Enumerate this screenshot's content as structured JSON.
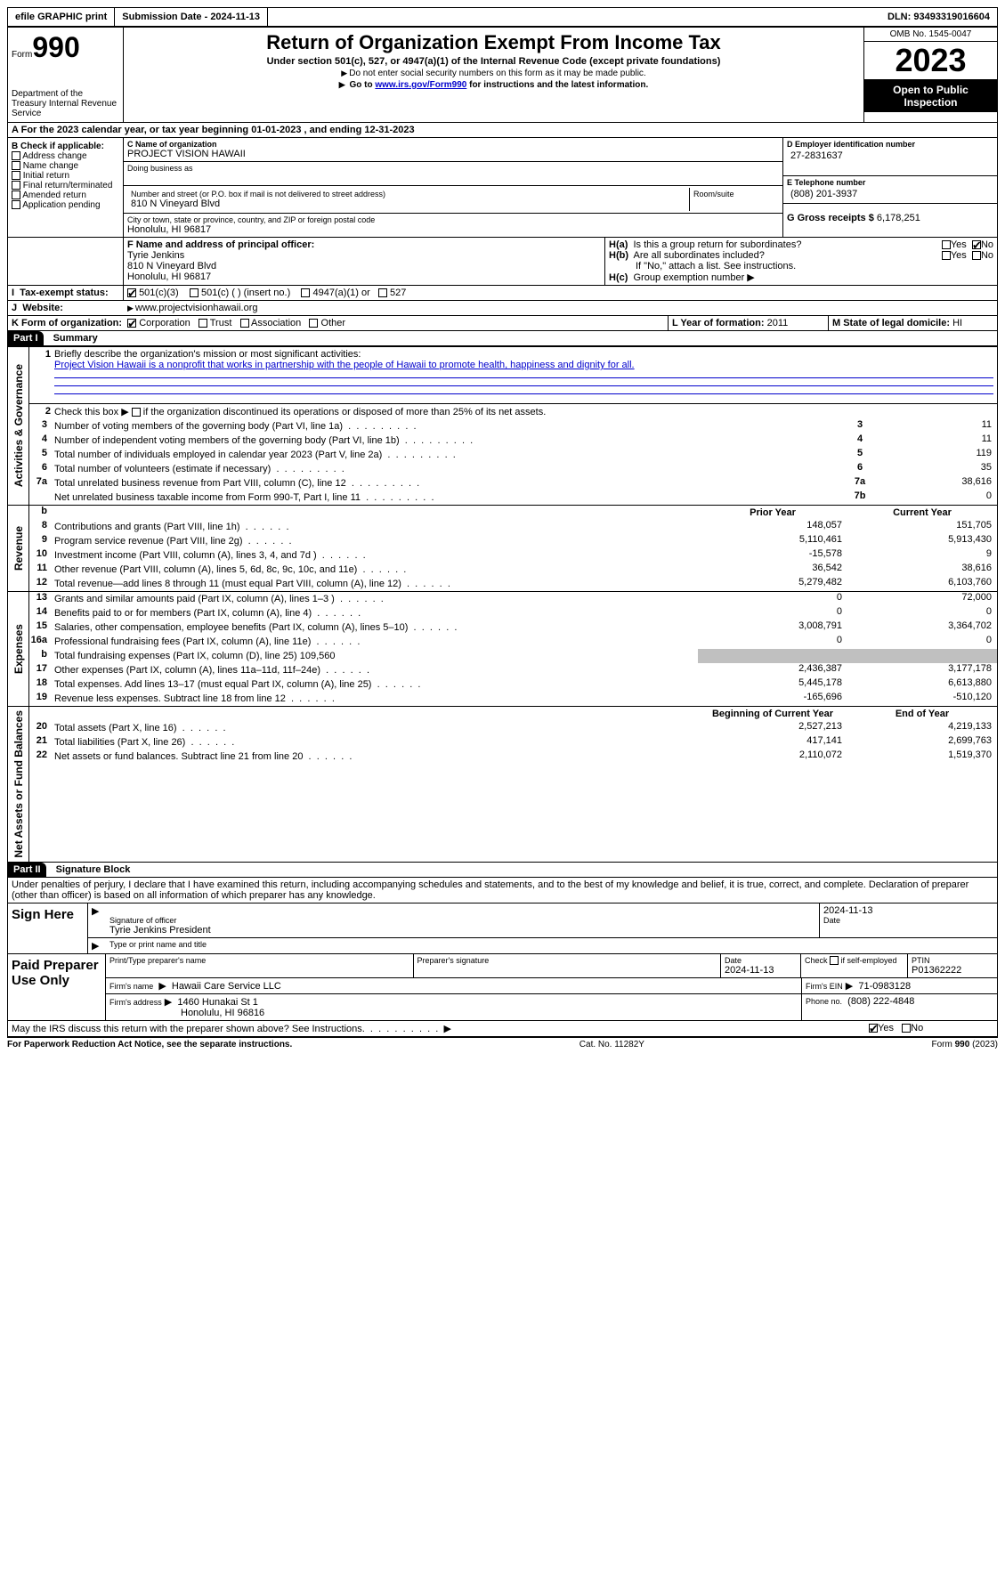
{
  "topbar": {
    "efile": "efile GRAPHIC print",
    "submission": "Submission Date - 2024-11-13",
    "dln": "DLN: 93493319016604"
  },
  "header": {
    "form_prefix": "Form",
    "form_number": "990",
    "dept": "Department of the Treasury Internal Revenue Service",
    "title": "Return of Organization Exempt From Income Tax",
    "subtitle": "Under section 501(c), 527, or 4947(a)(1) of the Internal Revenue Code (except private foundations)",
    "ssn_note": "Do not enter social security numbers on this form as it may be made public.",
    "goto_pre": "Go to ",
    "goto_link": "www.irs.gov/Form990",
    "goto_post": " for instructions and the latest information.",
    "omb": "OMB No. 1545-0047",
    "year": "2023",
    "open": "Open to Public Inspection"
  },
  "line_a": "For the 2023 calendar year, or tax year beginning 01-01-2023   , and ending 12-31-2023",
  "box_b": {
    "label": "B Check if applicable:",
    "items": [
      "Address change",
      "Name change",
      "Initial return",
      "Final return/terminated",
      "Amended return",
      "Application pending"
    ]
  },
  "box_c": {
    "name_label": "C Name of organization",
    "name": "PROJECT VISION HAWAII",
    "dba_label": "Doing business as",
    "dba": "",
    "addr_label": "Number and street (or P.O. box if mail is not delivered to street address)",
    "room_label": "Room/suite",
    "addr": "810 N Vineyard Blvd",
    "city_label": "City or town, state or province, country, and ZIP or foreign postal code",
    "city": "Honolulu, HI  96817"
  },
  "box_d": {
    "label": "D Employer identification number",
    "value": "27-2831637"
  },
  "box_e": {
    "label": "E Telephone number",
    "value": "(808) 201-3937"
  },
  "box_g": {
    "label": "G Gross receipts $",
    "value": "6,178,251"
  },
  "box_f": {
    "label": "F  Name and address of principal officer:",
    "name": "Tyrie Jenkins",
    "addr1": "810 N Vineyard Blvd",
    "addr2": "Honolulu, HI  96817"
  },
  "box_h": {
    "ha": "H(a)  Is this a group return for subordinates?",
    "hb": "H(b)  Are all subordinates included?",
    "hb_note": "If \"No,\" attach a list. See instructions.",
    "hc": "H(c)  Group exemption number",
    "yes": "Yes",
    "no": "No"
  },
  "tax_exempt": {
    "label": "Tax-exempt status:",
    "opt1": "501(c)(3)",
    "opt2": "501(c) (  ) (insert no.)",
    "opt3": "4947(a)(1) or",
    "opt4": "527"
  },
  "website": {
    "label": "Website:",
    "value": "www.projectvisionhawaii.org"
  },
  "box_k": {
    "label": "K Form of organization:",
    "opts": [
      "Corporation",
      "Trust",
      "Association",
      "Other"
    ]
  },
  "box_l": {
    "label": "L Year of formation:",
    "value": "2011"
  },
  "box_m": {
    "label": "M State of legal domicile:",
    "value": "HI"
  },
  "part1": {
    "header": "Part I",
    "title": "Summary",
    "q1_label": "Briefly describe the organization's mission or most significant activities:",
    "q1_ln": "1",
    "mission": "Project Vision Hawaii is a nonprofit that works in partnership with the people of Hawaii to promote health, happiness and dignity for all.",
    "q2_ln": "2",
    "q2": "Check this box        if the organization discontinued its operations or disposed of more than 25% of its net assets.",
    "rows_gov": [
      {
        "ln": "3",
        "desc": "Number of voting members of the governing body (Part VI, line 1a)",
        "box": "3",
        "val": "11"
      },
      {
        "ln": "4",
        "desc": "Number of independent voting members of the governing body (Part VI, line 1b)",
        "box": "4",
        "val": "11"
      },
      {
        "ln": "5",
        "desc": "Total number of individuals employed in calendar year 2023 (Part V, line 2a)",
        "box": "5",
        "val": "119"
      },
      {
        "ln": "6",
        "desc": "Total number of volunteers (estimate if necessary)",
        "box": "6",
        "val": "35"
      },
      {
        "ln": "7a",
        "desc": "Total unrelated business revenue from Part VIII, column (C), line 12",
        "box": "7a",
        "val": "38,616"
      },
      {
        "ln": "",
        "desc": "Net unrelated business taxable income from Form 990-T, Part I, line 11",
        "box": "7b",
        "val": "0"
      }
    ],
    "prior_hdr": "Prior Year",
    "current_hdr": "Current Year",
    "rows_rev": [
      {
        "ln": "8",
        "desc": "Contributions and grants (Part VIII, line 1h)",
        "py": "148,057",
        "cy": "151,705"
      },
      {
        "ln": "9",
        "desc": "Program service revenue (Part VIII, line 2g)",
        "py": "5,110,461",
        "cy": "5,913,430"
      },
      {
        "ln": "10",
        "desc": "Investment income (Part VIII, column (A), lines 3, 4, and 7d )",
        "py": "-15,578",
        "cy": "9"
      },
      {
        "ln": "11",
        "desc": "Other revenue (Part VIII, column (A), lines 5, 6d, 8c, 9c, 10c, and 11e)",
        "py": "36,542",
        "cy": "38,616"
      },
      {
        "ln": "12",
        "desc": "Total revenue—add lines 8 through 11 (must equal Part VIII, column (A), line 12)",
        "py": "5,279,482",
        "cy": "6,103,760"
      }
    ],
    "rows_exp": [
      {
        "ln": "13",
        "desc": "Grants and similar amounts paid (Part IX, column (A), lines 1–3 )",
        "py": "0",
        "cy": "72,000"
      },
      {
        "ln": "14",
        "desc": "Benefits paid to or for members (Part IX, column (A), line 4)",
        "py": "0",
        "cy": "0"
      },
      {
        "ln": "15",
        "desc": "Salaries, other compensation, employee benefits (Part IX, column (A), lines 5–10)",
        "py": "3,008,791",
        "cy": "3,364,702"
      },
      {
        "ln": "16a",
        "desc": "Professional fundraising fees (Part IX, column (A), line 11e)",
        "py": "0",
        "cy": "0"
      },
      {
        "ln": "b",
        "desc": "Total fundraising expenses (Part IX, column (D), line 25) 109,560",
        "py": "",
        "cy": "",
        "grey": true
      },
      {
        "ln": "17",
        "desc": "Other expenses (Part IX, column (A), lines 11a–11d, 11f–24e)",
        "py": "2,436,387",
        "cy": "3,177,178"
      },
      {
        "ln": "18",
        "desc": "Total expenses. Add lines 13–17 (must equal Part IX, column (A), line 25)",
        "py": "5,445,178",
        "cy": "6,613,880"
      },
      {
        "ln": "19",
        "desc": "Revenue less expenses. Subtract line 18 from line 12",
        "py": "-165,696",
        "cy": "-510,120"
      }
    ],
    "beg_hdr": "Beginning of Current Year",
    "end_hdr": "End of Year",
    "rows_net": [
      {
        "ln": "20",
        "desc": "Total assets (Part X, line 16)",
        "py": "2,527,213",
        "cy": "4,219,133"
      },
      {
        "ln": "21",
        "desc": "Total liabilities (Part X, line 26)",
        "py": "417,141",
        "cy": "2,699,763"
      },
      {
        "ln": "22",
        "desc": "Net assets or fund balances. Subtract line 21 from line 20",
        "py": "2,110,072",
        "cy": "1,519,370"
      }
    ]
  },
  "sidecats": {
    "gov": "Activities & Governance",
    "rev": "Revenue",
    "exp": "Expenses",
    "net": "Net Assets or Fund Balances"
  },
  "part2": {
    "header": "Part II",
    "title": "Signature Block",
    "declaration": "Under penalties of perjury, I declare that I have examined this return, including accompanying schedules and statements, and to the best of my knowledge and belief, it is true, correct, and complete. Declaration of preparer (other than officer) is based on all information of which preparer has any knowledge."
  },
  "sign": {
    "left": "Sign Here",
    "sig_label": "Signature of officer",
    "name": "Tyrie Jenkins  President",
    "name_label": "Type or print name and title",
    "date_label": "Date",
    "date": "2024-11-13"
  },
  "preparer": {
    "left": "Paid Preparer Use Only",
    "print_label": "Print/Type preparer's name",
    "sig_label": "Preparer's signature",
    "date_label": "Date",
    "date": "2024-11-13",
    "check_label": "Check         if self-employed",
    "ptin_label": "PTIN",
    "ptin": "P01362222",
    "firm_name_label": "Firm's name",
    "firm_name": "Hawaii Care Service LLC",
    "firm_ein_label": "Firm's EIN",
    "firm_ein": "71-0983128",
    "firm_addr_label": "Firm's address",
    "firm_addr1": "1460 Hunakai St 1",
    "firm_addr2": "Honolulu, HI  96816",
    "phone_label": "Phone no.",
    "phone": "(808) 222-4848"
  },
  "discuss": "May the IRS discuss this return with the preparer shown above? See Instructions.",
  "footer": {
    "left": "For Paperwork Reduction Act Notice, see the separate instructions.",
    "mid": "Cat. No. 11282Y",
    "right_pre": "Form ",
    "right_bold": "990",
    "right_post": " (2023)"
  },
  "labels": {
    "yes": "Yes",
    "no": "No",
    "b_marker": "b"
  }
}
